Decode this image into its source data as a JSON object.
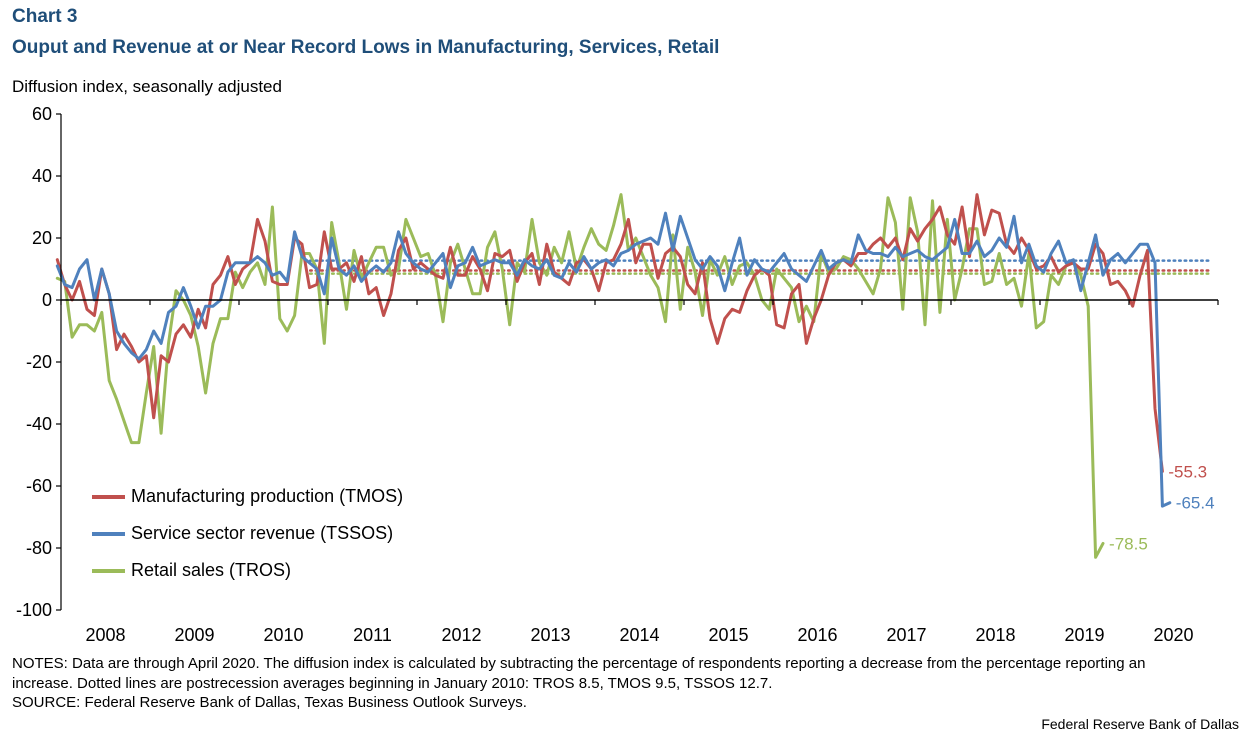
{
  "header": {
    "chart_number": "Chart 3",
    "title": "Ouput and Revenue at or Near Record Lows in Manufacturing, Services, Retail",
    "unit_label": "Diffusion index, seasonally adjusted"
  },
  "footer": {
    "notes": "NOTES: Data are through April 2020. The diffusion index is calculated by subtracting the percentage of respondents reporting a decrease from the percentage reporting an increase. Dotted lines are postrecession averages beginning in January 2010: TROS 8.5, TMOS 9.5, TSSOS 12.7.",
    "source": "SOURCE: Federal Reserve Bank of Dallas, Texas Business Outlook Surveys.",
    "credit": "Federal Reserve  Bank of Dallas"
  },
  "colors": {
    "tmos": "#c0504d",
    "tssos": "#4f81bd",
    "tros": "#9bbb59"
  },
  "chart_data": {
    "type": "line",
    "title": "Ouput and Revenue at or Near Record Lows in Manufacturing, Services, Retail",
    "ylabel": "Diffusion index, seasonally adjusted",
    "xlabel": "",
    "ylim": [
      -100,
      60
    ],
    "yticks": [
      60,
      40,
      20,
      0,
      -20,
      -40,
      -60,
      -80,
      -100
    ],
    "year_labels": [
      "2008",
      "2009",
      "2010",
      "2011",
      "2012",
      "2013",
      "2014",
      "2015",
      "2016",
      "2017",
      "2018",
      "2019",
      "2020"
    ],
    "x_start": "2007-06",
    "x_end": "2020-04",
    "grid": false,
    "legend_position": "lower-left",
    "series": [
      {
        "key": "tmos",
        "name": "Manufacturing production (TMOS)",
        "end_label": "-55.3",
        "average": 9.5,
        "values": [
          13,
          5,
          0,
          6,
          -3,
          -5,
          10,
          2,
          -16,
          -11,
          -15,
          -20,
          -18,
          -38,
          -18,
          -20,
          -11,
          -8,
          -12,
          -3,
          -9,
          5,
          8,
          14,
          5,
          10,
          12,
          26,
          19,
          6,
          5,
          5,
          20,
          18,
          4,
          5,
          22,
          10,
          10,
          12,
          6,
          14,
          2,
          4,
          -5,
          2,
          16,
          20,
          10,
          12,
          10,
          8,
          7,
          17,
          8,
          8,
          14,
          10,
          3,
          15,
          14,
          16,
          6,
          12,
          15,
          5,
          18,
          9,
          7,
          5,
          12,
          13,
          10,
          3,
          12,
          13,
          18,
          26,
          12,
          18,
          18,
          7,
          15,
          17,
          14,
          5,
          2,
          12,
          -6,
          -14,
          -6,
          -3,
          -4,
          3,
          8,
          10,
          8,
          -8,
          -9,
          2,
          5,
          -14,
          -6,
          0,
          8,
          12,
          13,
          11,
          15,
          15,
          18,
          20,
          17,
          20,
          13,
          23,
          19,
          23,
          26,
          30,
          21,
          18,
          30,
          14,
          34,
          21,
          29,
          28,
          18,
          15,
          20,
          16,
          10,
          11,
          14,
          9,
          11,
          12,
          10,
          10,
          18,
          15,
          5,
          6,
          3,
          -2,
          8,
          16,
          -35,
          -55.3
        ]
      },
      {
        "key": "tssos",
        "name": "Service sector revenue (TSSOS)",
        "end_label": "-65.4",
        "average": 12.7,
        "values": [
          11,
          5,
          4,
          10,
          13,
          0,
          10,
          2,
          -10,
          -14,
          -17,
          -19,
          -16,
          -10,
          -14,
          -4,
          -2,
          4,
          -2,
          -9,
          -2,
          -2,
          0,
          9,
          12,
          12,
          12,
          14,
          12,
          8,
          9,
          6,
          22,
          14,
          12,
          10,
          2,
          20,
          10,
          8,
          11,
          6,
          9,
          11,
          9,
          12,
          22,
          15,
          12,
          10,
          9,
          12,
          15,
          4,
          11,
          12,
          17,
          11,
          12,
          13,
          12,
          12,
          8,
          13,
          11,
          10,
          13,
          8,
          7,
          12,
          9,
          14,
          10,
          12,
          13,
          11,
          15,
          16,
          18,
          19,
          20,
          18,
          28,
          16,
          27,
          20,
          13,
          10,
          14,
          11,
          3,
          12,
          20,
          8,
          13,
          10,
          9,
          12,
          15,
          10,
          8,
          6,
          11,
          16,
          10,
          12,
          13,
          12,
          21,
          16,
          15,
          15,
          14,
          17,
          14,
          15,
          16,
          14,
          13,
          15,
          17,
          26,
          15,
          15,
          19,
          14,
          16,
          20,
          17,
          27,
          12,
          18,
          11,
          9,
          15,
          19,
          12,
          13,
          3,
          12,
          21,
          8,
          13,
          15,
          12,
          15,
          18,
          18,
          12,
          -66.5,
          -65.4
        ]
      },
      {
        "key": "tros",
        "name": "Retail sales (TROS)",
        "end_label": "-78.5",
        "average": 8.5,
        "values": [
          7,
          6,
          -12,
          -8,
          -8,
          -10,
          -4,
          -26,
          -32,
          -39,
          -46,
          -46,
          -30,
          -15,
          -43,
          -14,
          3,
          0,
          -5,
          -15,
          -30,
          -14,
          -6,
          -6,
          9,
          4,
          9,
          12,
          5,
          30,
          -6,
          -10,
          -5,
          15,
          15,
          10,
          -14,
          25,
          12,
          -3,
          16,
          7,
          12,
          17,
          17,
          8,
          10,
          26,
          20,
          14,
          15,
          8,
          -7,
          12,
          18,
          10,
          2,
          2,
          17,
          22,
          10,
          -8,
          12,
          9,
          26,
          12,
          8,
          17,
          12,
          22,
          10,
          17,
          23,
          18,
          16,
          24,
          34,
          16,
          20,
          14,
          8,
          4,
          -7,
          21,
          -3,
          17,
          9,
          -5,
          13,
          8,
          14,
          5,
          11,
          12,
          8,
          0,
          -3,
          10,
          7,
          4,
          -7,
          -2,
          -7,
          15,
          9,
          10,
          14,
          13,
          10,
          6,
          2,
          10,
          33,
          25,
          -3,
          33,
          22,
          -8,
          32,
          -4,
          26,
          0,
          10,
          23,
          23,
          5,
          6,
          15,
          5,
          7,
          -2,
          15,
          -9,
          -7,
          8,
          5,
          11,
          12,
          8,
          -2,
          -83,
          -78.5
        ]
      }
    ]
  }
}
